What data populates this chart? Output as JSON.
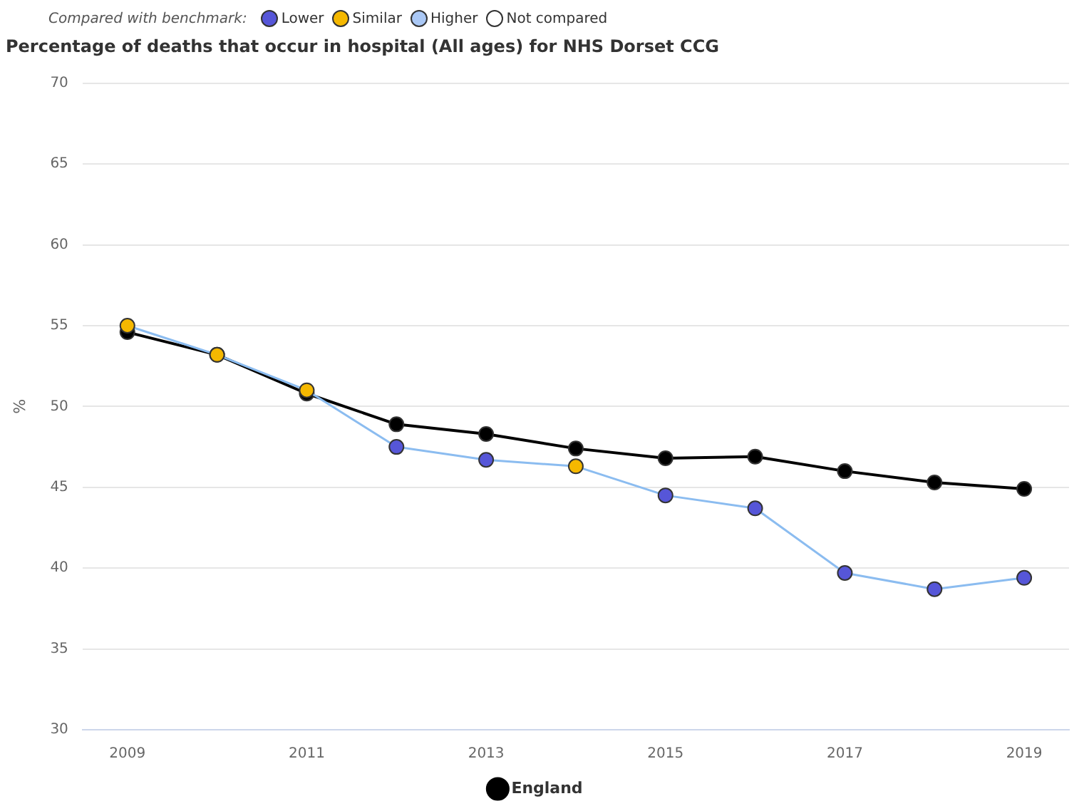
{
  "chart_data": {
    "type": "line",
    "title": "Percentage of deaths that occur in hospital (All ages) for NHS Dorset CCG",
    "ylabel": "%",
    "annotations": [
      "Compared with benchmark:",
      "Lower",
      "Similar",
      "Higher",
      "Not compared"
    ],
    "categories": [
      "2009",
      null,
      "2011",
      null,
      "2013",
      null,
      "2015",
      null,
      "2017",
      null,
      "2019"
    ],
    "series": [
      {
        "color": "#8bbcf0",
        "colors": [
          "#f5b800",
          "#f5b800",
          "#f5b800",
          "#5656d8",
          "#5656d8",
          "#f5b800",
          "#5656d8",
          "#5656d8",
          "#5656d8",
          "#5656d8",
          "#5656d8"
        ],
        "values": [
          55.0,
          53.2,
          51.0,
          47.5,
          46.7,
          46.3,
          44.5,
          43.7,
          39.7,
          38.7,
          39.4
        ]
      },
      {
        "name": "England",
        "color": "#000000",
        "values": [
          54.6,
          53.2,
          50.8,
          48.9,
          48.3,
          47.4,
          46.8,
          46.9,
          46.0,
          45.3,
          44.9
        ]
      }
    ],
    "ylim": [
      30,
      70
    ],
    "yticks": [
      30,
      35,
      40,
      45,
      50,
      55,
      60,
      65,
      70
    ],
    "grid": "y",
    "legend": "bottom",
    "marker": "circle",
    "line_style": "solid"
  }
}
